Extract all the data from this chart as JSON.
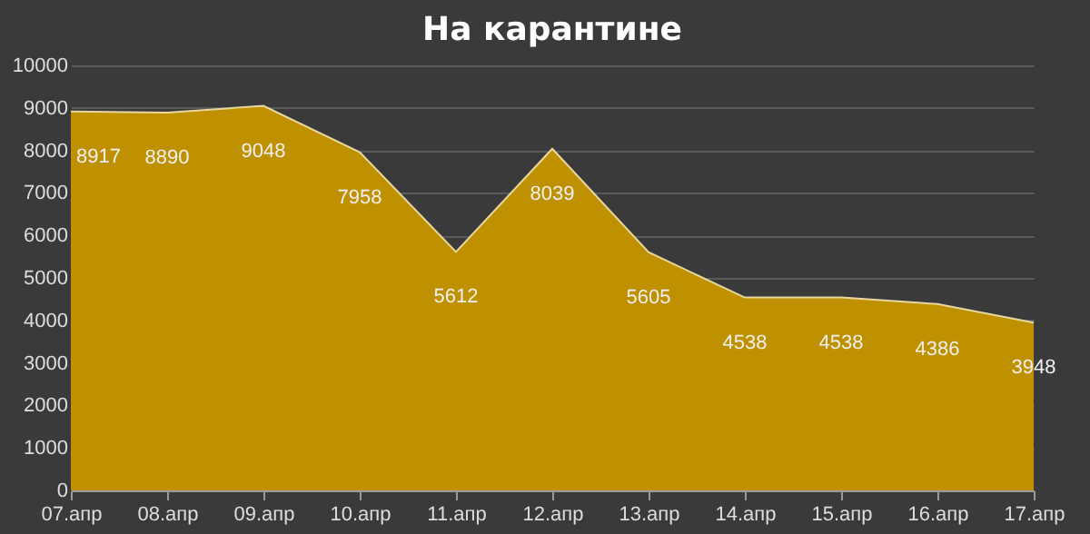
{
  "chart_data": {
    "type": "area",
    "title": "На карантине",
    "categories": [
      "07.апр",
      "08.апр",
      "09.апр",
      "10.апр",
      "11.апр",
      "12.апр",
      "13.апр",
      "14.апр",
      "15.апр",
      "16.апр",
      "17.апр"
    ],
    "values": [
      8917,
      8890,
      9048,
      7958,
      5612,
      8039,
      5605,
      4538,
      4538,
      4386,
      3948
    ],
    "color": "#bf9000",
    "ylim": [
      0,
      10000
    ],
    "yticks": [
      0,
      1000,
      2000,
      3000,
      4000,
      5000,
      6000,
      7000,
      8000,
      9000,
      10000
    ],
    "grid": "y",
    "data_labels": true
  }
}
